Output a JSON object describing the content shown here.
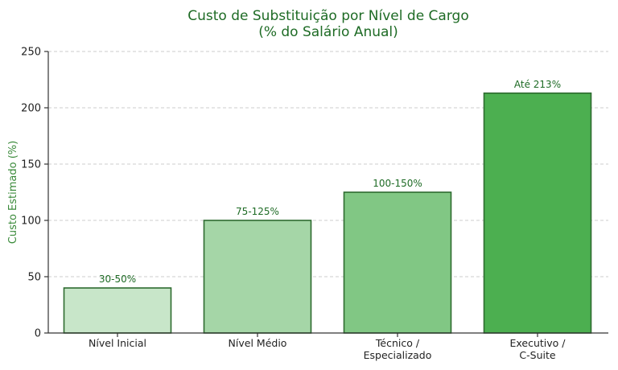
{
  "colors": {
    "title": "#1e6b25",
    "axis_label": "#3a8a3a",
    "bar_outline": "#2e6b30",
    "value_label": "#1e6b25",
    "axis": "#333333",
    "grid": "#cccccc",
    "text": "#222222"
  },
  "chart_data": {
    "type": "bar",
    "title": [
      "Custo de Substituição por Nível de Cargo",
      "(% do Salário Anual)"
    ],
    "xlabel": "",
    "ylabel": "Custo Estimado (%)",
    "ylim": [
      0,
      250
    ],
    "yticks": [
      0,
      50,
      100,
      150,
      200,
      250
    ],
    "grid": true,
    "categories": [
      [
        "Nível Inicial"
      ],
      [
        "Nível Médio"
      ],
      [
        "Técnico /",
        "Especializado"
      ],
      [
        "Executivo /",
        "C-Suite"
      ]
    ],
    "values": [
      40,
      100,
      125,
      213
    ],
    "value_labels": [
      "30-50%",
      "75-125%",
      "100-150%",
      "Até 213%"
    ],
    "bar_colors": [
      "#c8e6c9",
      "#a5d6a7",
      "#81c784",
      "#4caf50"
    ]
  }
}
